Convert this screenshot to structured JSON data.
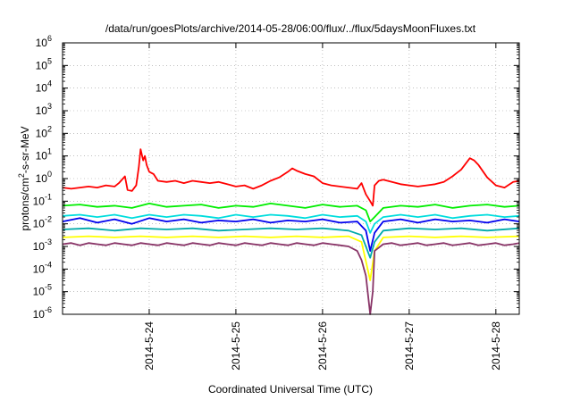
{
  "chart_data": {
    "type": "line",
    "title": "/data/run/goesPlots/archive/2014-05-28/06:00/flux/../flux/5daysMoonFluxes.txt",
    "xlabel": "Coordinated Universal Time (UTC)",
    "ylabel": {
      "main": "protons/cm",
      "sup": "2",
      "rest": "-s-sr-MeV"
    },
    "yscale": "log",
    "ylim_exp": [
      -6,
      6
    ],
    "y_tick_exponents": [
      6,
      5,
      4,
      3,
      2,
      1,
      0,
      -1,
      -2,
      -3,
      -4,
      -5,
      -6
    ],
    "y_tick_base": "10",
    "x_tick_labels": [
      "2014-5-24",
      "2014-5-25",
      "2014-5-26",
      "2014-5-27",
      "2014-5-28"
    ],
    "xlim_days": [
      23.0,
      28.27
    ],
    "x_tick_days": [
      24,
      25,
      26,
      27,
      28
    ],
    "grid": true,
    "series": [
      {
        "color": "#ff0000",
        "points": [
          [
            23.0,
            -0.4
          ],
          [
            23.1,
            -0.45
          ],
          [
            23.2,
            -0.4
          ],
          [
            23.3,
            -0.35
          ],
          [
            23.4,
            -0.4
          ],
          [
            23.5,
            -0.3
          ],
          [
            23.6,
            -0.35
          ],
          [
            23.65,
            -0.2
          ],
          [
            23.72,
            0.1
          ],
          [
            23.75,
            -0.5
          ],
          [
            23.8,
            -0.55
          ],
          [
            23.85,
            -0.3
          ],
          [
            23.88,
            0.5
          ],
          [
            23.9,
            1.3
          ],
          [
            23.93,
            0.8
          ],
          [
            23.95,
            1.0
          ],
          [
            23.97,
            0.6
          ],
          [
            24.0,
            0.3
          ],
          [
            24.05,
            0.2
          ],
          [
            24.1,
            -0.1
          ],
          [
            24.2,
            -0.15
          ],
          [
            24.3,
            -0.1
          ],
          [
            24.4,
            -0.2
          ],
          [
            24.5,
            -0.1
          ],
          [
            24.6,
            -0.15
          ],
          [
            24.7,
            -0.2
          ],
          [
            24.8,
            -0.15
          ],
          [
            24.9,
            -0.25
          ],
          [
            25.0,
            -0.35
          ],
          [
            25.1,
            -0.3
          ],
          [
            25.2,
            -0.45
          ],
          [
            25.3,
            -0.3
          ],
          [
            25.4,
            -0.1
          ],
          [
            25.5,
            0.05
          ],
          [
            25.6,
            0.3
          ],
          [
            25.65,
            0.45
          ],
          [
            25.7,
            0.35
          ],
          [
            25.8,
            0.2
          ],
          [
            25.9,
            0.1
          ],
          [
            26.0,
            -0.2
          ],
          [
            26.1,
            -0.3
          ],
          [
            26.2,
            -0.35
          ],
          [
            26.3,
            -0.4
          ],
          [
            26.4,
            -0.45
          ],
          [
            26.45,
            -0.2
          ],
          [
            26.5,
            -0.7
          ],
          [
            26.55,
            -1.0
          ],
          [
            26.58,
            -1.2
          ],
          [
            26.6,
            -0.3
          ],
          [
            26.65,
            -0.1
          ],
          [
            26.7,
            -0.05
          ],
          [
            26.8,
            -0.15
          ],
          [
            26.9,
            -0.25
          ],
          [
            27.0,
            -0.3
          ],
          [
            27.1,
            -0.35
          ],
          [
            27.2,
            -0.3
          ],
          [
            27.3,
            -0.25
          ],
          [
            27.4,
            -0.15
          ],
          [
            27.5,
            0.1
          ],
          [
            27.6,
            0.4
          ],
          [
            27.7,
            0.9
          ],
          [
            27.75,
            0.8
          ],
          [
            27.8,
            0.6
          ],
          [
            27.9,
            0.05
          ],
          [
            28.0,
            -0.3
          ],
          [
            28.1,
            -0.4
          ],
          [
            28.2,
            -0.15
          ],
          [
            28.27,
            -0.1
          ]
        ]
      },
      {
        "color": "#00ee00",
        "points": [
          [
            23.0,
            -1.2
          ],
          [
            23.2,
            -1.15
          ],
          [
            23.4,
            -1.25
          ],
          [
            23.6,
            -1.2
          ],
          [
            23.8,
            -1.3
          ],
          [
            24.0,
            -1.1
          ],
          [
            24.2,
            -1.25
          ],
          [
            24.4,
            -1.2
          ],
          [
            24.6,
            -1.15
          ],
          [
            24.8,
            -1.3
          ],
          [
            25.0,
            -1.2
          ],
          [
            25.2,
            -1.25
          ],
          [
            25.4,
            -1.1
          ],
          [
            25.6,
            -1.2
          ],
          [
            25.8,
            -1.3
          ],
          [
            26.0,
            -1.15
          ],
          [
            26.2,
            -1.25
          ],
          [
            26.4,
            -1.2
          ],
          [
            26.5,
            -1.4
          ],
          [
            26.55,
            -1.9
          ],
          [
            26.6,
            -1.7
          ],
          [
            26.7,
            -1.3
          ],
          [
            26.9,
            -1.2
          ],
          [
            27.1,
            -1.25
          ],
          [
            27.3,
            -1.15
          ],
          [
            27.5,
            -1.3
          ],
          [
            27.7,
            -1.2
          ],
          [
            27.9,
            -1.15
          ],
          [
            28.1,
            -1.25
          ],
          [
            28.27,
            -1.2
          ]
        ]
      },
      {
        "color": "#00dddd",
        "points": [
          [
            23.0,
            -1.65
          ],
          [
            23.2,
            -1.6
          ],
          [
            23.4,
            -1.7
          ],
          [
            23.6,
            -1.6
          ],
          [
            23.8,
            -1.75
          ],
          [
            24.0,
            -1.6
          ],
          [
            24.2,
            -1.7
          ],
          [
            24.4,
            -1.6
          ],
          [
            24.6,
            -1.65
          ],
          [
            24.8,
            -1.75
          ],
          [
            25.0,
            -1.6
          ],
          [
            25.2,
            -1.7
          ],
          [
            25.4,
            -1.6
          ],
          [
            25.6,
            -1.65
          ],
          [
            25.8,
            -1.75
          ],
          [
            26.0,
            -1.6
          ],
          [
            26.2,
            -1.7
          ],
          [
            26.4,
            -1.65
          ],
          [
            26.5,
            -1.9
          ],
          [
            26.55,
            -2.4
          ],
          [
            26.6,
            -2.0
          ],
          [
            26.7,
            -1.7
          ],
          [
            26.9,
            -1.6
          ],
          [
            27.1,
            -1.7
          ],
          [
            27.3,
            -1.6
          ],
          [
            27.5,
            -1.75
          ],
          [
            27.7,
            -1.65
          ],
          [
            27.9,
            -1.6
          ],
          [
            28.1,
            -1.7
          ],
          [
            28.27,
            -1.65
          ]
        ]
      },
      {
        "color": "#0000ee",
        "points": [
          [
            23.0,
            -1.9
          ],
          [
            23.2,
            -1.75
          ],
          [
            23.4,
            -1.95
          ],
          [
            23.6,
            -1.8
          ],
          [
            23.8,
            -2.0
          ],
          [
            24.0,
            -1.75
          ],
          [
            24.2,
            -1.9
          ],
          [
            24.4,
            -1.8
          ],
          [
            24.6,
            -1.95
          ],
          [
            24.8,
            -1.85
          ],
          [
            25.0,
            -1.9
          ],
          [
            25.2,
            -1.8
          ],
          [
            25.4,
            -1.95
          ],
          [
            25.6,
            -1.85
          ],
          [
            25.8,
            -1.9
          ],
          [
            26.0,
            -1.8
          ],
          [
            26.2,
            -1.95
          ],
          [
            26.4,
            -1.9
          ],
          [
            26.5,
            -2.3
          ],
          [
            26.55,
            -3.2
          ],
          [
            26.6,
            -2.4
          ],
          [
            26.7,
            -1.9
          ],
          [
            26.9,
            -1.8
          ],
          [
            27.1,
            -1.95
          ],
          [
            27.3,
            -1.8
          ],
          [
            27.5,
            -1.9
          ],
          [
            27.7,
            -1.85
          ],
          [
            27.9,
            -1.95
          ],
          [
            28.1,
            -1.8
          ],
          [
            28.27,
            -1.9
          ]
        ]
      },
      {
        "color": "#00aaaa",
        "points": [
          [
            23.0,
            -2.25
          ],
          [
            23.3,
            -2.2
          ],
          [
            23.6,
            -2.3
          ],
          [
            23.9,
            -2.2
          ],
          [
            24.2,
            -2.25
          ],
          [
            24.5,
            -2.2
          ],
          [
            24.8,
            -2.3
          ],
          [
            25.1,
            -2.25
          ],
          [
            25.4,
            -2.2
          ],
          [
            25.7,
            -2.25
          ],
          [
            26.0,
            -2.2
          ],
          [
            26.3,
            -2.3
          ],
          [
            26.45,
            -2.5
          ],
          [
            26.55,
            -3.5
          ],
          [
            26.6,
            -2.8
          ],
          [
            26.7,
            -2.3
          ],
          [
            27.0,
            -2.2
          ],
          [
            27.3,
            -2.25
          ],
          [
            27.6,
            -2.2
          ],
          [
            27.9,
            -2.3
          ],
          [
            28.27,
            -2.2
          ]
        ]
      },
      {
        "color": "#ffff00",
        "points": [
          [
            23.0,
            -2.6
          ],
          [
            23.3,
            -2.55
          ],
          [
            23.6,
            -2.6
          ],
          [
            23.9,
            -2.55
          ],
          [
            24.2,
            -2.6
          ],
          [
            24.5,
            -2.55
          ],
          [
            24.8,
            -2.6
          ],
          [
            25.1,
            -2.55
          ],
          [
            25.4,
            -2.6
          ],
          [
            25.7,
            -2.55
          ],
          [
            26.0,
            -2.6
          ],
          [
            26.3,
            -2.55
          ],
          [
            26.45,
            -2.8
          ],
          [
            26.55,
            -4.5
          ],
          [
            26.6,
            -3.2
          ],
          [
            26.7,
            -2.6
          ],
          [
            27.0,
            -2.55
          ],
          [
            27.3,
            -2.6
          ],
          [
            27.6,
            -2.55
          ],
          [
            27.9,
            -2.6
          ],
          [
            28.27,
            -2.55
          ]
        ]
      },
      {
        "color": "#883366",
        "points": [
          [
            23.0,
            -2.9
          ],
          [
            23.1,
            -2.85
          ],
          [
            23.2,
            -2.95
          ],
          [
            23.3,
            -2.85
          ],
          [
            23.4,
            -2.9
          ],
          [
            23.5,
            -2.95
          ],
          [
            23.6,
            -2.85
          ],
          [
            23.7,
            -2.9
          ],
          [
            23.8,
            -2.95
          ],
          [
            23.9,
            -2.85
          ],
          [
            24.0,
            -2.9
          ],
          [
            24.1,
            -2.95
          ],
          [
            24.2,
            -2.85
          ],
          [
            24.3,
            -2.9
          ],
          [
            24.4,
            -2.95
          ],
          [
            24.5,
            -2.85
          ],
          [
            24.6,
            -2.9
          ],
          [
            24.7,
            -2.95
          ],
          [
            24.8,
            -2.85
          ],
          [
            24.9,
            -2.9
          ],
          [
            25.0,
            -2.95
          ],
          [
            25.1,
            -2.85
          ],
          [
            25.2,
            -2.9
          ],
          [
            25.3,
            -2.95
          ],
          [
            25.4,
            -2.85
          ],
          [
            25.5,
            -2.9
          ],
          [
            25.6,
            -2.95
          ],
          [
            25.7,
            -2.85
          ],
          [
            25.8,
            -2.9
          ],
          [
            25.9,
            -2.95
          ],
          [
            26.0,
            -2.85
          ],
          [
            26.1,
            -2.9
          ],
          [
            26.2,
            -2.95
          ],
          [
            26.3,
            -3.0
          ],
          [
            26.4,
            -3.2
          ],
          [
            26.45,
            -3.6
          ],
          [
            26.5,
            -4.3
          ],
          [
            26.55,
            -6.0
          ],
          [
            26.58,
            -5.0
          ],
          [
            26.6,
            -3.2
          ],
          [
            26.7,
            -2.9
          ],
          [
            26.8,
            -2.85
          ],
          [
            26.9,
            -2.95
          ],
          [
            27.0,
            -2.9
          ],
          [
            27.1,
            -2.85
          ],
          [
            27.2,
            -2.95
          ],
          [
            27.3,
            -2.9
          ],
          [
            27.4,
            -2.85
          ],
          [
            27.5,
            -2.95
          ],
          [
            27.6,
            -2.9
          ],
          [
            27.7,
            -2.85
          ],
          [
            27.8,
            -2.95
          ],
          [
            27.9,
            -2.9
          ],
          [
            28.0,
            -2.85
          ],
          [
            28.1,
            -2.95
          ],
          [
            28.2,
            -2.9
          ],
          [
            28.27,
            -2.85
          ]
        ]
      }
    ]
  }
}
